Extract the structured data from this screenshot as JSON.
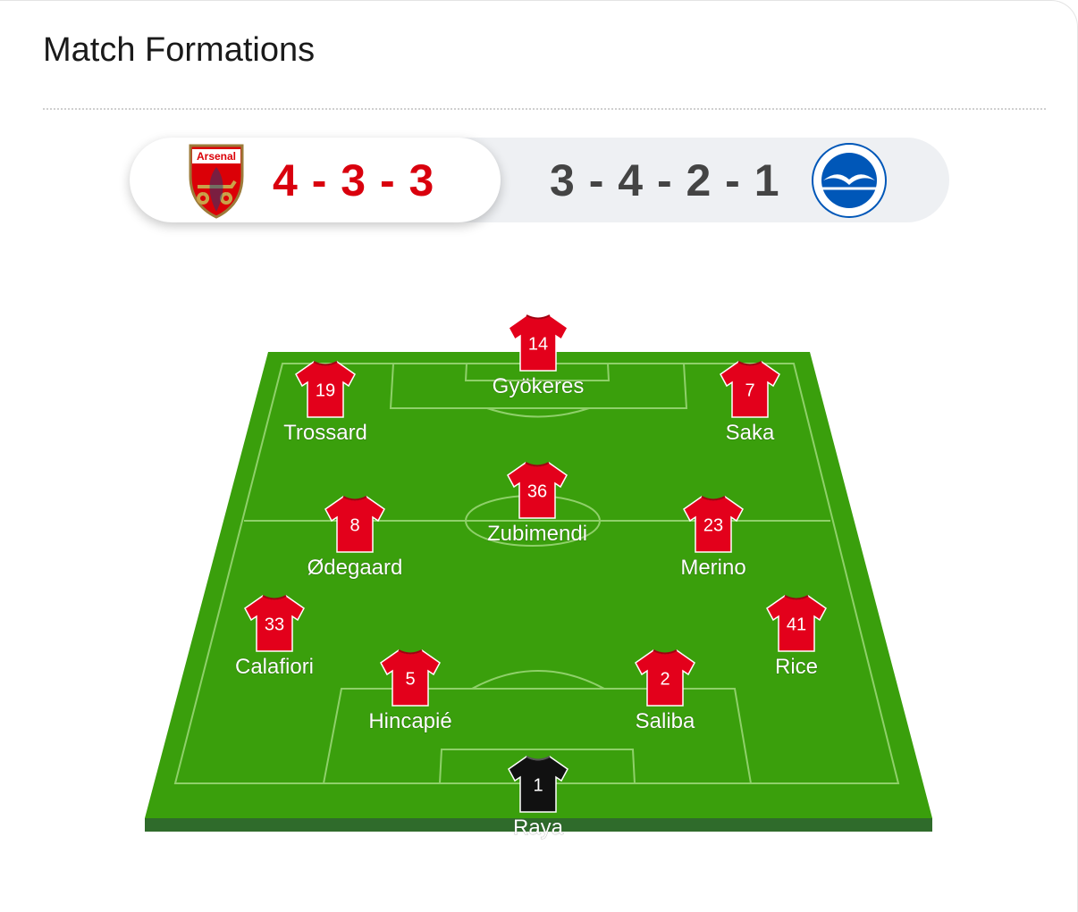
{
  "header": {
    "title": "Match Formations"
  },
  "tabs": {
    "home": {
      "crest_text": "Arsenal",
      "formation": "4 - 3 - 3"
    },
    "away": {
      "formation": "3 - 4 - 2 - 1"
    }
  },
  "players": [
    {
      "number": "14",
      "name": "Gyökeres"
    },
    {
      "number": "19",
      "name": "Trossard"
    },
    {
      "number": "7",
      "name": "Saka"
    },
    {
      "number": "36",
      "name": "Zubimendi"
    },
    {
      "number": "8",
      "name": "Ødegaard"
    },
    {
      "number": "23",
      "name": "Merino"
    },
    {
      "number": "33",
      "name": "Calafiori"
    },
    {
      "number": "41",
      "name": "Rice"
    },
    {
      "number": "5",
      "name": "Hincapié"
    },
    {
      "number": "2",
      "name": "Saliba"
    },
    {
      "number": "1",
      "name": "Raya"
    }
  ]
}
